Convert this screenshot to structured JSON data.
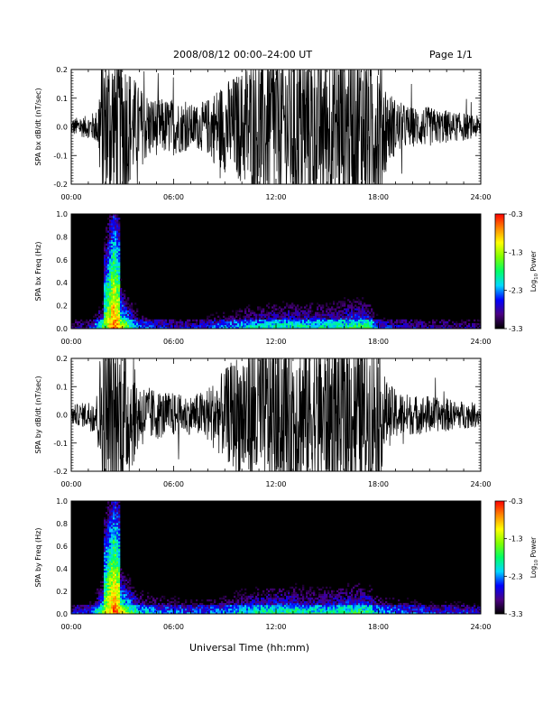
{
  "header": {
    "title": "2008/08/12   00:00–24:00 UT",
    "page": "Page 1/1"
  },
  "x_axis_title": "Universal Time (hh:mm)",
  "colorbar": {
    "title_main": "Log",
    "title_sub": "10",
    "title_rest": " Power",
    "ticks": [
      "-0.3",
      "-1.3",
      "-2.3",
      "-3.3"
    ],
    "tick_values": [
      -0.3,
      -1.3,
      -2.3,
      -3.3
    ],
    "range": [
      -3.3,
      -0.3
    ],
    "colors": [
      "#000000",
      "#4b0082",
      "#0000ff",
      "#00d8ff",
      "#00ff66",
      "#7fff00",
      "#ffff00",
      "#ff8800",
      "#ff0000"
    ]
  },
  "chart_data": [
    {
      "type": "line",
      "ylabel": "SPA bx dB/dt (nT/sec)",
      "xlim": [
        0,
        24
      ],
      "ylim": [
        -0.2,
        0.2
      ],
      "x_ticks": [
        "00:00",
        "06:00",
        "12:00",
        "18:00",
        "24:00"
      ],
      "y_ticks": [
        "0.2",
        "0.1",
        "0.0",
        "-0.1",
        "-0.2"
      ],
      "y_tick_values": [
        0.2,
        0.1,
        0.0,
        -0.1,
        -0.2
      ],
      "envelope": {
        "hours": [
          0,
          0.5,
          1.0,
          1.5,
          1.8,
          2.0,
          2.5,
          3.0,
          3.5,
          4.0,
          4.5,
          5.0,
          5.5,
          6.0,
          6.5,
          7.0,
          7.5,
          8.0,
          8.5,
          9.0,
          9.5,
          10.0,
          10.5,
          11.0,
          11.5,
          12.0,
          12.5,
          13.0,
          13.5,
          14.0,
          14.5,
          15.0,
          15.5,
          16.0,
          16.5,
          17.0,
          17.5,
          18.0,
          18.5,
          19.0,
          19.5,
          20.0,
          20.5,
          21.0,
          21.5,
          22.0,
          22.5,
          23.0,
          23.5,
          24.0
        ],
        "amplitude": [
          0.03,
          0.035,
          0.04,
          0.06,
          0.3,
          0.3,
          0.3,
          0.3,
          0.2,
          0.14,
          0.12,
          0.1,
          0.1,
          0.1,
          0.09,
          0.08,
          0.08,
          0.1,
          0.14,
          0.16,
          0.18,
          0.2,
          0.25,
          0.28,
          0.3,
          0.3,
          0.3,
          0.3,
          0.3,
          0.3,
          0.3,
          0.3,
          0.3,
          0.3,
          0.3,
          0.3,
          0.3,
          0.3,
          0.14,
          0.1,
          0.08,
          0.07,
          0.07,
          0.07,
          0.06,
          0.06,
          0.05,
          0.05,
          0.04,
          0.04
        ]
      }
    },
    {
      "type": "heatmap",
      "ylabel": "SPA bx Freq (Hz)",
      "xlim": [
        0,
        24
      ],
      "ylim": [
        0.0,
        1.0
      ],
      "x_ticks": [
        "00:00",
        "06:00",
        "12:00",
        "18:00",
        "24:00"
      ],
      "y_ticks": [
        "1.0",
        "0.8",
        "0.6",
        "0.4",
        "0.2",
        "0.0"
      ],
      "y_tick_values": [
        1.0,
        0.8,
        0.6,
        0.4,
        0.2,
        0.0
      ],
      "low_freq_power": {
        "hours": [
          0,
          1,
          2,
          2.5,
          3,
          4,
          5,
          6,
          7,
          8,
          9,
          10,
          11,
          12,
          13,
          14,
          15,
          16,
          17,
          17.5,
          18,
          19,
          20,
          21,
          22,
          23,
          24
        ],
        "log_power": [
          -2.9,
          -2.8,
          -1.5,
          -0.5,
          -1.2,
          -2.3,
          -2.6,
          -2.7,
          -2.7,
          -2.5,
          -2.3,
          -2.1,
          -2.0,
          -1.9,
          -1.9,
          -1.9,
          -1.9,
          -1.8,
          -1.7,
          -1.8,
          -2.5,
          -2.7,
          -2.7,
          -2.8,
          -2.8,
          -2.8,
          -2.9
        ]
      }
    },
    {
      "type": "line",
      "ylabel": "SPA by dB/dt (nT/sec)",
      "xlim": [
        0,
        24
      ],
      "ylim": [
        -0.2,
        0.2
      ],
      "x_ticks": [
        "00:00",
        "06:00",
        "12:00",
        "18:00",
        "24:00"
      ],
      "y_ticks": [
        "0.2",
        "0.1",
        "0.0",
        "-0.1",
        "-0.2"
      ],
      "y_tick_values": [
        0.2,
        0.1,
        0.0,
        -0.1,
        -0.2
      ],
      "envelope": {
        "hours": [
          0,
          0.5,
          1.0,
          1.5,
          1.8,
          2.0,
          2.5,
          3.0,
          3.5,
          4.0,
          4.5,
          5.0,
          5.5,
          6.0,
          6.5,
          7.0,
          7.5,
          8.0,
          8.5,
          9.0,
          9.5,
          10.0,
          10.5,
          11.0,
          11.5,
          12.0,
          12.5,
          13.0,
          13.5,
          14.0,
          14.5,
          15.0,
          15.5,
          16.0,
          16.5,
          17.0,
          17.5,
          18.0,
          18.5,
          19.0,
          19.5,
          20.0,
          20.5,
          21.0,
          21.5,
          22.0,
          22.5,
          23.0,
          23.5,
          24.0
        ],
        "amplitude": [
          0.035,
          0.04,
          0.05,
          0.08,
          0.3,
          0.3,
          0.3,
          0.3,
          0.2,
          0.12,
          0.1,
          0.09,
          0.08,
          0.08,
          0.07,
          0.07,
          0.08,
          0.1,
          0.13,
          0.16,
          0.2,
          0.25,
          0.3,
          0.3,
          0.3,
          0.3,
          0.3,
          0.3,
          0.3,
          0.3,
          0.3,
          0.3,
          0.3,
          0.3,
          0.3,
          0.3,
          0.3,
          0.25,
          0.12,
          0.09,
          0.08,
          0.07,
          0.07,
          0.07,
          0.06,
          0.06,
          0.05,
          0.05,
          0.045,
          0.04
        ]
      }
    },
    {
      "type": "heatmap",
      "ylabel": "SPA by Freq (Hz)",
      "xlim": [
        0,
        24
      ],
      "ylim": [
        0.0,
        1.0
      ],
      "x_ticks": [
        "00:00",
        "06:00",
        "12:00",
        "18:00",
        "24:00"
      ],
      "y_ticks": [
        "1.0",
        "0.8",
        "0.6",
        "0.4",
        "0.2",
        "0.0"
      ],
      "y_tick_values": [
        1.0,
        0.8,
        0.6,
        0.4,
        0.2,
        0.0
      ],
      "low_freq_power": {
        "hours": [
          0,
          1,
          2,
          2.5,
          3,
          4,
          5,
          6,
          7,
          8,
          9,
          10,
          11,
          12,
          13,
          14,
          15,
          16,
          17,
          17.5,
          18,
          19,
          20,
          21,
          22,
          23,
          24
        ],
        "log_power": [
          -2.7,
          -2.5,
          -1.3,
          -0.5,
          -1.1,
          -2.0,
          -2.2,
          -2.3,
          -2.4,
          -2.3,
          -2.2,
          -2.0,
          -1.9,
          -1.8,
          -1.8,
          -1.9,
          -1.9,
          -1.8,
          -1.7,
          -1.8,
          -2.2,
          -2.3,
          -2.4,
          -2.5,
          -2.5,
          -2.5,
          -2.6
        ]
      }
    }
  ]
}
